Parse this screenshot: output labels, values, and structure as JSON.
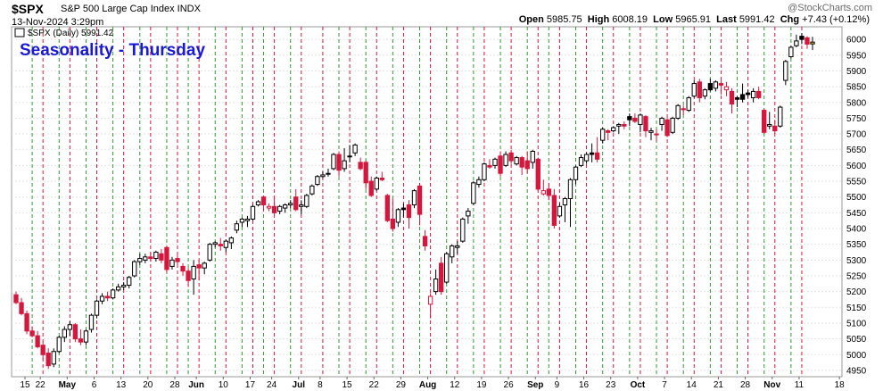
{
  "header": {
    "symbol": "$SPX",
    "description": "S&P 500 Large Cap Index INDX",
    "date": "13-Nov-2024 3:29pm",
    "open_label": "Open",
    "open": "5985.75",
    "high_label": "High",
    "high": "6008.19",
    "low_label": "Low",
    "low": "5965.91",
    "last_label": "Last",
    "last": "5991.42",
    "chg_label": "Chg",
    "chg": "+7.43 (+0.12%)",
    "watermark": "@StockCharts.com"
  },
  "legend": {
    "label": "$SPX (Daily) 5991.42"
  },
  "overlay_title": "Seasonality - Thursday",
  "colors": {
    "up": "#000000",
    "down": "#d6163c",
    "up_fill": "#ffffff",
    "thursday_line": "#2e9a2e",
    "monday_line": "#d6163c",
    "grid": "#e3e3e3",
    "title": "#1a1ad6"
  },
  "chart_data": {
    "type": "candlestick",
    "title": "Seasonality - Thursday",
    "ylim": [
      4930,
      6040
    ],
    "y_ticks": [
      4950,
      5000,
      5050,
      5100,
      5150,
      5200,
      5250,
      5300,
      5350,
      5400,
      5450,
      5500,
      5550,
      5600,
      5650,
      5700,
      5750,
      5800,
      5850,
      5900,
      5950,
      6000
    ],
    "x_ticks": [
      "15",
      "22",
      "May",
      "6",
      "13",
      "20",
      "28",
      "Jun",
      "10",
      "17",
      "24",
      "Jul",
      "8",
      "15",
      "22",
      "29",
      "Aug",
      "12",
      "19",
      "26",
      "Sep",
      "9",
      "16",
      "23",
      "Oct",
      "7",
      "14",
      "21",
      "28",
      "Nov",
      "11",
      "18"
    ],
    "x_ticks_bold": [
      "May",
      "Jun",
      "Jul",
      "Aug",
      "Sep",
      "Oct",
      "Nov"
    ],
    "vertical_lines": "red dashed at each week start (Monday), green dashed at each Thursday",
    "grid": true,
    "candles": [
      {
        "d": "2024-04-15",
        "o": 5190,
        "h": 5200,
        "l": 5160,
        "c": 5165
      },
      {
        "d": "2024-04-16",
        "o": 5165,
        "h": 5180,
        "l": 5125,
        "c": 5130
      },
      {
        "d": "2024-04-17",
        "o": 5130,
        "h": 5140,
        "l": 5065,
        "c": 5075
      },
      {
        "d": "2024-04-18",
        "o": 5075,
        "h": 5090,
        "l": 5055,
        "c": 5060
      },
      {
        "d": "2024-04-19",
        "o": 5060,
        "h": 5075,
        "l": 5020,
        "c": 5025
      },
      {
        "d": "2024-04-22",
        "o": 5030,
        "h": 5040,
        "l": 4985,
        "c": 5000
      },
      {
        "d": "2024-04-23",
        "o": 5005,
        "h": 5020,
        "l": 4955,
        "c": 4965
      },
      {
        "d": "2024-04-24",
        "o": 4970,
        "h": 5020,
        "l": 4960,
        "c": 5010
      },
      {
        "d": "2024-04-25",
        "o": 5010,
        "h": 5060,
        "l": 5005,
        "c": 5055
      },
      {
        "d": "2024-04-26",
        "o": 5055,
        "h": 5090,
        "l": 5040,
        "c": 5080
      },
      {
        "d": "2024-04-29",
        "o": 5080,
        "h": 5105,
        "l": 5060,
        "c": 5095
      },
      {
        "d": "2024-04-30",
        "o": 5095,
        "h": 5100,
        "l": 5040,
        "c": 5050
      },
      {
        "d": "2024-05-01",
        "o": 5050,
        "h": 5080,
        "l": 5030,
        "c": 5040
      },
      {
        "d": "2024-05-02",
        "o": 5040,
        "h": 5080,
        "l": 5030,
        "c": 5075
      },
      {
        "d": "2024-05-03",
        "o": 5080,
        "h": 5130,
        "l": 5070,
        "c": 5125
      },
      {
        "d": "2024-05-06",
        "o": 5125,
        "h": 5175,
        "l": 5115,
        "c": 5170
      },
      {
        "d": "2024-05-07",
        "o": 5170,
        "h": 5195,
        "l": 5160,
        "c": 5185
      },
      {
        "d": "2024-05-08",
        "o": 5185,
        "h": 5200,
        "l": 5170,
        "c": 5180
      },
      {
        "d": "2024-05-09",
        "o": 5180,
        "h": 5210,
        "l": 5175,
        "c": 5205
      },
      {
        "d": "2024-05-10",
        "o": 5205,
        "h": 5225,
        "l": 5200,
        "c": 5215
      },
      {
        "d": "2024-05-13",
        "o": 5215,
        "h": 5230,
        "l": 5205,
        "c": 5220
      },
      {
        "d": "2024-05-14",
        "o": 5220,
        "h": 5250,
        "l": 5210,
        "c": 5245
      },
      {
        "d": "2024-05-15",
        "o": 5250,
        "h": 5300,
        "l": 5245,
        "c": 5295
      },
      {
        "d": "2024-05-16",
        "o": 5295,
        "h": 5320,
        "l": 5285,
        "c": 5305
      },
      {
        "d": "2024-05-17",
        "o": 5300,
        "h": 5320,
        "l": 5290,
        "c": 5310
      },
      {
        "d": "2024-05-20",
        "o": 5310,
        "h": 5325,
        "l": 5295,
        "c": 5305
      },
      {
        "d": "2024-05-21",
        "o": 5305,
        "h": 5330,
        "l": 5295,
        "c": 5325
      },
      {
        "d": "2024-05-22",
        "o": 5320,
        "h": 5335,
        "l": 5290,
        "c": 5300
      },
      {
        "d": "2024-05-23",
        "o": 5340,
        "h": 5345,
        "l": 5260,
        "c": 5270
      },
      {
        "d": "2024-05-24",
        "o": 5280,
        "h": 5310,
        "l": 5270,
        "c": 5300
      },
      {
        "d": "2024-05-28",
        "o": 5305,
        "h": 5315,
        "l": 5280,
        "c": 5295
      },
      {
        "d": "2024-05-29",
        "o": 5280,
        "h": 5290,
        "l": 5250,
        "c": 5265
      },
      {
        "d": "2024-05-30",
        "o": 5265,
        "h": 5275,
        "l": 5215,
        "c": 5235
      },
      {
        "d": "2024-05-31",
        "o": 5240,
        "h": 5300,
        "l": 5190,
        "c": 5280
      },
      {
        "d": "2024-06-03",
        "o": 5285,
        "h": 5300,
        "l": 5235,
        "c": 5275
      },
      {
        "d": "2024-06-04",
        "o": 5275,
        "h": 5295,
        "l": 5255,
        "c": 5290
      },
      {
        "d": "2024-06-05",
        "o": 5300,
        "h": 5355,
        "l": 5295,
        "c": 5350
      },
      {
        "d": "2024-06-06",
        "o": 5350,
        "h": 5360,
        "l": 5340,
        "c": 5355
      },
      {
        "d": "2024-06-07",
        "o": 5350,
        "h": 5370,
        "l": 5330,
        "c": 5345
      },
      {
        "d": "2024-06-10",
        "o": 5340,
        "h": 5365,
        "l": 5325,
        "c": 5360
      },
      {
        "d": "2024-06-11",
        "o": 5355,
        "h": 5375,
        "l": 5335,
        "c": 5370
      },
      {
        "d": "2024-06-12",
        "o": 5395,
        "h": 5425,
        "l": 5385,
        "c": 5415
      },
      {
        "d": "2024-06-13",
        "o": 5420,
        "h": 5435,
        "l": 5405,
        "c": 5430
      },
      {
        "d": "2024-06-14",
        "o": 5425,
        "h": 5440,
        "l": 5405,
        "c": 5430
      },
      {
        "d": "2024-06-17",
        "o": 5430,
        "h": 5475,
        "l": 5425,
        "c": 5470
      },
      {
        "d": "2024-06-18",
        "o": 5475,
        "h": 5490,
        "l": 5470,
        "c": 5485
      },
      {
        "d": "2024-06-20",
        "o": 5500,
        "h": 5505,
        "l": 5455,
        "c": 5475
      },
      {
        "d": "2024-06-21",
        "o": 5465,
        "h": 5480,
        "l": 5455,
        "c": 5470
      },
      {
        "d": "2024-06-24",
        "o": 5470,
        "h": 5500,
        "l": 5445,
        "c": 5450
      },
      {
        "d": "2024-06-25",
        "o": 5455,
        "h": 5475,
        "l": 5445,
        "c": 5470
      },
      {
        "d": "2024-06-26",
        "o": 5465,
        "h": 5480,
        "l": 5450,
        "c": 5475
      },
      {
        "d": "2024-06-27",
        "o": 5475,
        "h": 5490,
        "l": 5465,
        "c": 5480
      },
      {
        "d": "2024-06-28",
        "o": 5500,
        "h": 5525,
        "l": 5455,
        "c": 5460
      },
      {
        "d": "2024-07-01",
        "o": 5470,
        "h": 5490,
        "l": 5445,
        "c": 5475
      },
      {
        "d": "2024-07-02",
        "o": 5470,
        "h": 5510,
        "l": 5465,
        "c": 5505
      },
      {
        "d": "2024-07-03",
        "o": 5510,
        "h": 5540,
        "l": 5505,
        "c": 5535
      },
      {
        "d": "2024-07-05",
        "o": 5540,
        "h": 5570,
        "l": 5535,
        "c": 5565
      },
      {
        "d": "2024-07-08",
        "o": 5565,
        "h": 5580,
        "l": 5560,
        "c": 5570
      },
      {
        "d": "2024-07-09",
        "o": 5575,
        "h": 5590,
        "l": 5565,
        "c": 5575
      },
      {
        "d": "2024-07-10",
        "o": 5590,
        "h": 5640,
        "l": 5585,
        "c": 5635
      },
      {
        "d": "2024-07-11",
        "o": 5635,
        "h": 5645,
        "l": 5565,
        "c": 5585
      },
      {
        "d": "2024-07-12",
        "o": 5590,
        "h": 5655,
        "l": 5580,
        "c": 5615
      },
      {
        "d": "2024-07-15",
        "o": 5630,
        "h": 5665,
        "l": 5610,
        "c": 5630
      },
      {
        "d": "2024-07-16",
        "o": 5640,
        "h": 5670,
        "l": 5630,
        "c": 5665
      },
      {
        "d": "2024-07-17",
        "o": 5610,
        "h": 5625,
        "l": 5585,
        "c": 5590
      },
      {
        "d": "2024-07-18",
        "o": 5610,
        "h": 5615,
        "l": 5525,
        "c": 5545
      },
      {
        "d": "2024-07-19",
        "o": 5550,
        "h": 5565,
        "l": 5500,
        "c": 5505
      },
      {
        "d": "2024-07-22",
        "o": 5525,
        "h": 5565,
        "l": 5520,
        "c": 5560
      },
      {
        "d": "2024-07-23",
        "o": 5560,
        "h": 5580,
        "l": 5550,
        "c": 5555
      },
      {
        "d": "2024-07-24",
        "o": 5505,
        "h": 5510,
        "l": 5420,
        "c": 5425
      },
      {
        "d": "2024-07-25",
        "o": 5430,
        "h": 5495,
        "l": 5390,
        "c": 5400
      },
      {
        "d": "2024-07-26",
        "o": 5420,
        "h": 5465,
        "l": 5405,
        "c": 5460
      },
      {
        "d": "2024-07-29",
        "o": 5465,
        "h": 5480,
        "l": 5435,
        "c": 5460
      },
      {
        "d": "2024-07-30",
        "o": 5475,
        "h": 5490,
        "l": 5400,
        "c": 5435
      },
      {
        "d": "2024-07-31",
        "o": 5475,
        "h": 5525,
        "l": 5465,
        "c": 5520
      },
      {
        "d": "2024-08-01",
        "o": 5535,
        "h": 5545,
        "l": 5410,
        "c": 5445
      },
      {
        "d": "2024-08-02",
        "o": 5375,
        "h": 5395,
        "l": 5330,
        "c": 5345
      },
      {
        "d": "2024-08-05",
        "o": 5160,
        "h": 5195,
        "l": 5115,
        "c": 5185
      },
      {
        "d": "2024-08-06",
        "o": 5200,
        "h": 5270,
        "l": 5190,
        "c": 5240
      },
      {
        "d": "2024-08-07",
        "o": 5290,
        "h": 5310,
        "l": 5190,
        "c": 5200
      },
      {
        "d": "2024-08-08",
        "o": 5230,
        "h": 5325,
        "l": 5225,
        "c": 5320
      },
      {
        "d": "2024-08-09",
        "o": 5310,
        "h": 5350,
        "l": 5290,
        "c": 5345
      },
      {
        "d": "2024-08-12",
        "o": 5340,
        "h": 5360,
        "l": 5320,
        "c": 5345
      },
      {
        "d": "2024-08-13",
        "o": 5360,
        "h": 5435,
        "l": 5355,
        "c": 5430
      },
      {
        "d": "2024-08-14",
        "o": 5440,
        "h": 5465,
        "l": 5415,
        "c": 5455
      },
      {
        "d": "2024-08-15",
        "o": 5480,
        "h": 5550,
        "l": 5475,
        "c": 5545
      },
      {
        "d": "2024-08-16",
        "o": 5540,
        "h": 5565,
        "l": 5530,
        "c": 5555
      },
      {
        "d": "2024-08-19",
        "o": 5555,
        "h": 5610,
        "l": 5550,
        "c": 5605
      },
      {
        "d": "2024-08-20",
        "o": 5600,
        "h": 5620,
        "l": 5590,
        "c": 5595
      },
      {
        "d": "2024-08-21",
        "o": 5600,
        "h": 5625,
        "l": 5590,
        "c": 5620
      },
      {
        "d": "2024-08-22",
        "o": 5630,
        "h": 5645,
        "l": 5565,
        "c": 5575
      },
      {
        "d": "2024-08-23",
        "o": 5600,
        "h": 5645,
        "l": 5595,
        "c": 5635
      },
      {
        "d": "2024-08-26",
        "o": 5640,
        "h": 5650,
        "l": 5605,
        "c": 5615
      },
      {
        "d": "2024-08-27",
        "o": 5605,
        "h": 5630,
        "l": 5600,
        "c": 5625
      },
      {
        "d": "2024-08-28",
        "o": 5625,
        "h": 5630,
        "l": 5570,
        "c": 5595
      },
      {
        "d": "2024-08-29",
        "o": 5615,
        "h": 5645,
        "l": 5575,
        "c": 5590
      },
      {
        "d": "2024-08-30",
        "o": 5610,
        "h": 5650,
        "l": 5590,
        "c": 5645
      },
      {
        "d": "2024-09-03",
        "o": 5620,
        "h": 5625,
        "l": 5520,
        "c": 5525
      },
      {
        "d": "2024-09-04",
        "o": 5510,
        "h": 5555,
        "l": 5505,
        "c": 5520
      },
      {
        "d": "2024-09-05",
        "o": 5525,
        "h": 5545,
        "l": 5490,
        "c": 5505
      },
      {
        "d": "2024-09-06",
        "o": 5505,
        "h": 5525,
        "l": 5400,
        "c": 5410
      },
      {
        "d": "2024-09-09",
        "o": 5440,
        "h": 5480,
        "l": 5435,
        "c": 5470
      },
      {
        "d": "2024-09-10",
        "o": 5475,
        "h": 5500,
        "l": 5420,
        "c": 5495
      },
      {
        "d": "2024-09-11",
        "o": 5495,
        "h": 5560,
        "l": 5405,
        "c": 5555
      },
      {
        "d": "2024-09-12",
        "o": 5555,
        "h": 5600,
        "l": 5540,
        "c": 5595
      },
      {
        "d": "2024-09-13",
        "o": 5600,
        "h": 5635,
        "l": 5595,
        "c": 5625
      },
      {
        "d": "2024-09-16",
        "o": 5615,
        "h": 5640,
        "l": 5605,
        "c": 5635
      },
      {
        "d": "2024-09-17",
        "o": 5640,
        "h": 5670,
        "l": 5610,
        "c": 5635
      },
      {
        "d": "2024-09-18",
        "o": 5640,
        "h": 5690,
        "l": 5610,
        "c": 5620
      },
      {
        "d": "2024-09-19",
        "o": 5680,
        "h": 5720,
        "l": 5670,
        "c": 5715
      },
      {
        "d": "2024-09-20",
        "o": 5710,
        "h": 5715,
        "l": 5680,
        "c": 5705
      },
      {
        "d": "2024-09-23",
        "o": 5710,
        "h": 5725,
        "l": 5705,
        "c": 5720
      },
      {
        "d": "2024-09-24",
        "o": 5725,
        "h": 5735,
        "l": 5700,
        "c": 5730
      },
      {
        "d": "2024-09-25",
        "o": 5730,
        "h": 5740,
        "l": 5715,
        "c": 5725
      },
      {
        "d": "2024-09-26",
        "o": 5755,
        "h": 5765,
        "l": 5725,
        "c": 5745
      },
      {
        "d": "2024-09-27",
        "o": 5750,
        "h": 5765,
        "l": 5735,
        "c": 5740
      },
      {
        "d": "2024-09-30",
        "o": 5730,
        "h": 5765,
        "l": 5705,
        "c": 5760
      },
      {
        "d": "2024-10-01",
        "o": 5755,
        "h": 5760,
        "l": 5690,
        "c": 5710
      },
      {
        "d": "2024-10-02",
        "o": 5705,
        "h": 5720,
        "l": 5680,
        "c": 5710
      },
      {
        "d": "2024-10-03",
        "o": 5700,
        "h": 5715,
        "l": 5675,
        "c": 5700
      },
      {
        "d": "2024-10-04",
        "o": 5730,
        "h": 5755,
        "l": 5710,
        "c": 5750
      },
      {
        "d": "2024-10-07",
        "o": 5745,
        "h": 5750,
        "l": 5690,
        "c": 5695
      },
      {
        "d": "2024-10-08",
        "o": 5705,
        "h": 5755,
        "l": 5700,
        "c": 5750
      },
      {
        "d": "2024-10-09",
        "o": 5750,
        "h": 5795,
        "l": 5745,
        "c": 5790
      },
      {
        "d": "2024-10-10",
        "o": 5780,
        "h": 5790,
        "l": 5760,
        "c": 5780
      },
      {
        "d": "2024-10-11",
        "o": 5775,
        "h": 5820,
        "l": 5770,
        "c": 5815
      },
      {
        "d": "2024-10-14",
        "o": 5820,
        "h": 5870,
        "l": 5815,
        "c": 5860
      },
      {
        "d": "2024-10-15",
        "o": 5865,
        "h": 5875,
        "l": 5800,
        "c": 5815
      },
      {
        "d": "2024-10-16",
        "o": 5820,
        "h": 5845,
        "l": 5810,
        "c": 5840
      },
      {
        "d": "2024-10-17",
        "o": 5860,
        "h": 5875,
        "l": 5835,
        "c": 5840
      },
      {
        "d": "2024-10-18",
        "o": 5845,
        "h": 5870,
        "l": 5835,
        "c": 5865
      },
      {
        "d": "2024-10-21",
        "o": 5860,
        "h": 5870,
        "l": 5825,
        "c": 5855
      },
      {
        "d": "2024-10-22",
        "o": 5840,
        "h": 5865,
        "l": 5820,
        "c": 5850
      },
      {
        "d": "2024-10-23",
        "o": 5835,
        "h": 5845,
        "l": 5765,
        "c": 5795
      },
      {
        "d": "2024-10-24",
        "o": 5815,
        "h": 5820,
        "l": 5785,
        "c": 5810
      },
      {
        "d": "2024-10-25",
        "o": 5825,
        "h": 5860,
        "l": 5800,
        "c": 5810
      },
      {
        "d": "2024-10-28",
        "o": 5830,
        "h": 5840,
        "l": 5815,
        "c": 5825
      },
      {
        "d": "2024-10-29",
        "o": 5815,
        "h": 5845,
        "l": 5800,
        "c": 5835
      },
      {
        "d": "2024-10-30",
        "o": 5835,
        "h": 5850,
        "l": 5810,
        "c": 5815
      },
      {
        "d": "2024-10-31",
        "o": 5775,
        "h": 5780,
        "l": 5700,
        "c": 5705
      },
      {
        "d": "2024-11-01",
        "o": 5725,
        "h": 5770,
        "l": 5715,
        "c": 5730
      },
      {
        "d": "2024-11-04",
        "o": 5725,
        "h": 5745,
        "l": 5700,
        "c": 5710
      },
      {
        "d": "2024-11-05",
        "o": 5725,
        "h": 5790,
        "l": 5720,
        "c": 5785
      },
      {
        "d": "2024-11-06",
        "o": 5870,
        "h": 5935,
        "l": 5855,
        "c": 5930
      },
      {
        "d": "2024-11-07",
        "o": 5945,
        "h": 5980,
        "l": 5940,
        "c": 5975
      },
      {
        "d": "2024-11-08",
        "o": 5980,
        "h": 6015,
        "l": 5975,
        "c": 5995
      },
      {
        "d": "2024-11-11",
        "o": 6010,
        "h": 6020,
        "l": 5985,
        "c": 6000
      },
      {
        "d": "2024-11-12",
        "o": 6005,
        "h": 6010,
        "l": 5970,
        "c": 5985
      },
      {
        "d": "2024-11-13",
        "o": 5985.75,
        "h": 6008.19,
        "l": 5965.91,
        "c": 5991.42
      }
    ]
  }
}
